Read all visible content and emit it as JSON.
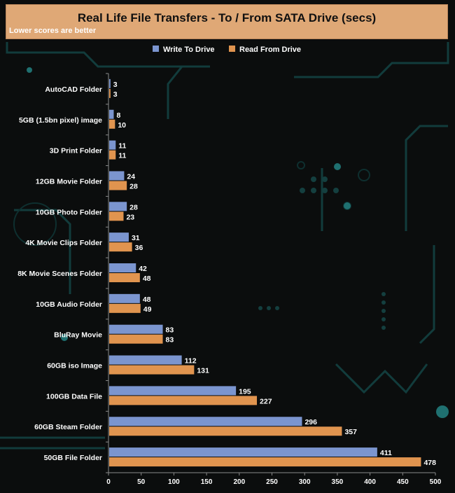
{
  "chart_data": {
    "type": "bar",
    "orientation": "horizontal",
    "title": "Real Life File Transfers - To / From SATA Drive (secs)",
    "subtitle": "Lower scores are better",
    "categories": [
      "AutoCAD Folder",
      "5GB (1.5bn pixel) image",
      "3D Print Folder",
      "12GB Movie Folder",
      "10GB Photo Folder",
      "4K Movie Clips Folder",
      "8K Movie Scenes Folder",
      "10GB Audio Folder",
      "BluRay Movie",
      "60GB iso Image",
      "100GB Data File",
      "60GB Steam Folder",
      "50GB File Folder"
    ],
    "series": [
      {
        "name": "Write To  Drive",
        "color": "#7b95cf",
        "values": [
          3,
          8,
          11,
          24,
          28,
          31,
          42,
          48,
          83,
          112,
          195,
          296,
          411
        ]
      },
      {
        "name": "Read From  Drive",
        "color": "#e0944f",
        "values": [
          3,
          10,
          11,
          28,
          23,
          36,
          48,
          49,
          83,
          131,
          227,
          357,
          478
        ]
      }
    ],
    "xlim": [
      0,
      500
    ],
    "xticks": [
      0,
      50,
      100,
      150,
      200,
      250,
      300,
      350,
      400,
      450,
      500
    ],
    "legend": "top-center",
    "grid": false
  }
}
